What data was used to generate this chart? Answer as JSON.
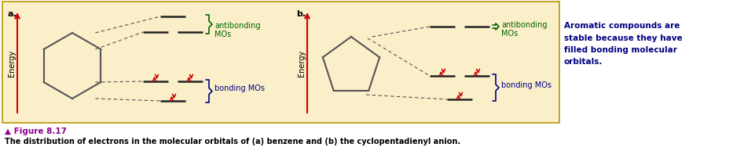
{
  "bg_color": "#faefc8",
  "border_color": "#b8960a",
  "title_color": "#8B008B",
  "figure_label": "Figure 8.17",
  "caption": "The distribution of electrons in the molecular orbitals of (a) benzene and (b) the cyclopentadienyl anion.",
  "side_note_lines": [
    "Aromatic compounds are",
    "stable because they have",
    "filled bonding molecular",
    "orbitals."
  ],
  "side_note_color": "#000080",
  "antibonding_color": "#006400",
  "bonding_color": "#00008B",
  "electron_color": "#cc0000",
  "mo_line_color": "#222222",
  "dashed_color": "#555555",
  "energy_arrow_color": "#cc0000",
  "molecule_line_color": "#555555",
  "label_a": "a.",
  "label_b": "b.",
  "fig_width": 9.33,
  "fig_height": 2.03,
  "dpi": 100
}
